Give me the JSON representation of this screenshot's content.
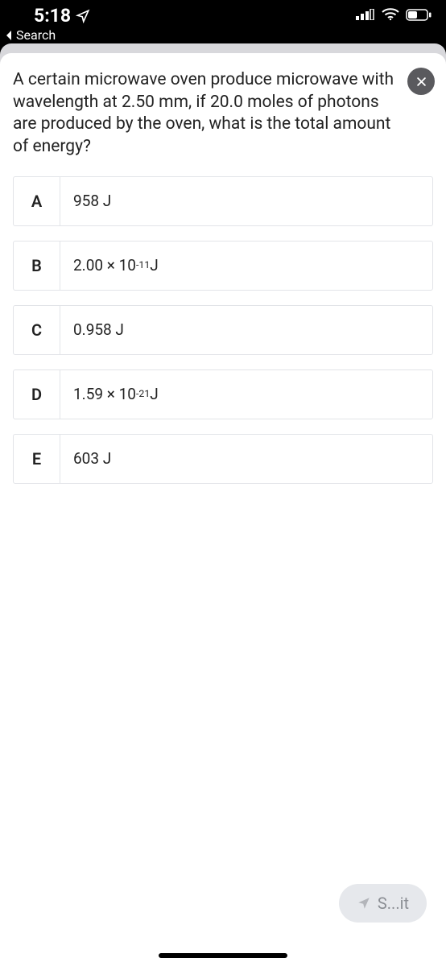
{
  "statusbar": {
    "time": "5:18",
    "back_label": "Search"
  },
  "question": "A certain microwave oven produce microwave with wavelength at 2.50 mm, if 20.0 moles of photons are produced by the oven, what is the total amount of energy?",
  "answers": [
    {
      "letter": "A",
      "text_html": "958 J"
    },
    {
      "letter": "B",
      "text_html": "2.00 × 10<sup>-11</sup> J"
    },
    {
      "letter": "C",
      "text_html": "0.958 J"
    },
    {
      "letter": "D",
      "text_html": "1.59 × 10<sup>-21</sup> J"
    },
    {
      "letter": "E",
      "text_html": "603 J"
    }
  ],
  "floating_label": "S...it",
  "colors": {
    "bg_black": "#000000",
    "sheet_bg": "#ffffff",
    "sheet_backdrop": "#d8d8dc",
    "border": "#e2e4e8",
    "text": "#222222",
    "close_bg": "#5a5a5e",
    "pill_bg": "#e6e8ec",
    "pill_text": "#8a8d93"
  },
  "fonts": {
    "time_size": 23,
    "question_size": 21,
    "answer_size": 19,
    "letter_size": 20,
    "pill_size": 20
  }
}
